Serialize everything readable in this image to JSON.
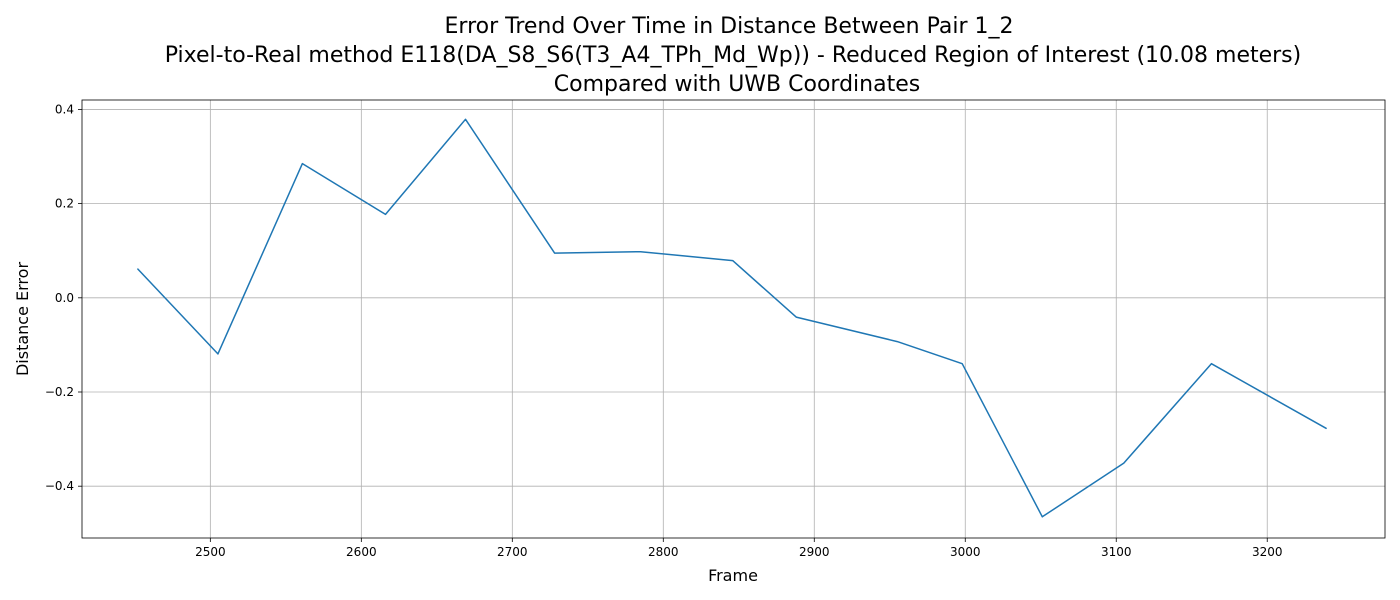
{
  "chart_data": {
    "type": "line",
    "title_lines": [
      "Error Trend Over Time in Distance Between Pair 1_2",
      "Pixel-to-Real method E118(DA_S8_S6(T3_A4_TPh_Md_Wp)) - Reduced Region of Interest (10.08 meters)",
      "Compared with UWB Coordinates"
    ],
    "xlabel": "Frame",
    "ylabel": "Distance Error",
    "xlim": [
      2415,
      3278
    ],
    "ylim": [
      -0.51,
      0.42
    ],
    "x_ticks": [
      2500,
      2600,
      2700,
      2800,
      2900,
      3000,
      3100,
      3200
    ],
    "y_ticks": [
      -0.4,
      -0.2,
      0.0,
      0.2,
      0.4
    ],
    "y_tick_labels": [
      "−0.4",
      "−0.2",
      "0.0",
      "0.2",
      "0.4"
    ],
    "grid": true,
    "series": [
      {
        "color": "#1f77b4",
        "x": [
          2452,
          2505,
          2561,
          2616,
          2669,
          2728,
          2785,
          2846,
          2888,
          2955,
          2998,
          3051,
          3105,
          3163,
          3239
        ],
        "y": [
          0.061,
          -0.119,
          0.285,
          0.177,
          0.379,
          0.095,
          0.098,
          0.079,
          -0.041,
          -0.093,
          -0.14,
          -0.465,
          -0.351,
          -0.14,
          -0.277
        ]
      }
    ]
  }
}
